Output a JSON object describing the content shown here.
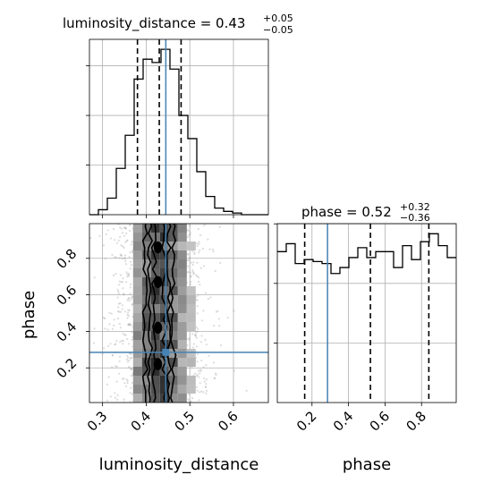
{
  "chart_data": {
    "type": "corner",
    "parameters": [
      {
        "name": "luminosity_distance",
        "axis_label": "luminosity_distance",
        "title": {
          "prefix": "luminosity_distance = ",
          "median": "0.43",
          "plus": "+0.05",
          "minus": "−0.05"
        },
        "range": [
          0.27,
          0.68
        ],
        "ticks": [
          0.3,
          0.4,
          0.5,
          0.6
        ],
        "tick_labels": [
          "0.3",
          "0.4",
          "0.5",
          "0.6"
        ],
        "median": 0.43,
        "quantiles": [
          0.38,
          0.43,
          0.48
        ],
        "truth": 0.445,
        "hist": {
          "bin_start": 0.27,
          "bin_width": 0.0205,
          "counts": [
            0,
            3,
            10,
            28,
            48,
            82,
            94,
            92,
            100,
            88,
            60,
            46,
            26,
            11,
            4,
            2,
            1,
            0,
            0,
            0
          ]
        }
      },
      {
        "name": "phase",
        "axis_label": "phase",
        "title": {
          "prefix": "phase = ",
          "median": "0.52",
          "plus": "+0.32",
          "minus": "−0.36"
        },
        "range": [
          0.01,
          0.99
        ],
        "ticks": [
          0.2,
          0.4,
          0.6,
          0.8
        ],
        "tick_labels": [
          "0.2",
          "0.4",
          "0.6",
          "0.8"
        ],
        "median": 0.52,
        "quantiles": [
          0.16,
          0.52,
          0.84
        ],
        "truth": 0.285,
        "hist": {
          "bin_start": 0.01,
          "bin_width": 0.049,
          "counts": [
            76,
            80,
            70,
            72,
            71,
            70,
            65,
            68,
            73,
            78,
            73,
            76,
            76,
            68,
            79,
            72,
            81,
            85,
            79,
            73
          ]
        }
      }
    ],
    "truth_color": "#4682b4",
    "hist_color": "#000000",
    "grid": true
  }
}
